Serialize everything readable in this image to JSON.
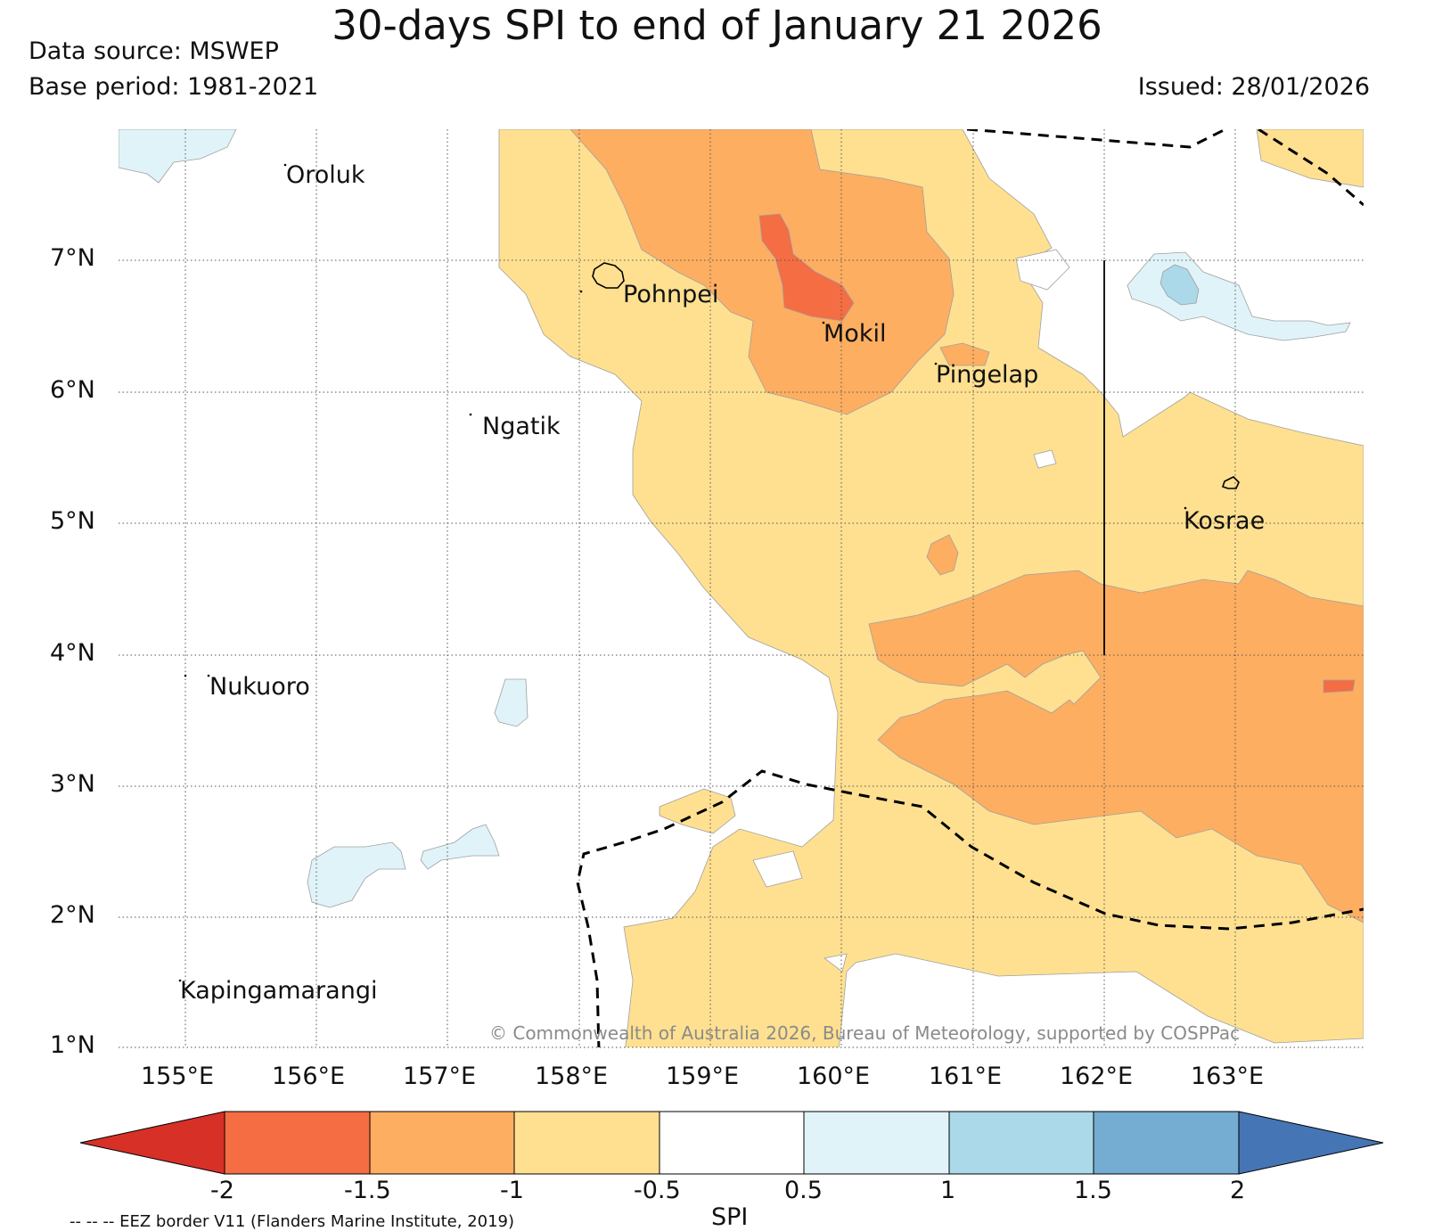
{
  "title": "30-days SPI to end of January 21 2026",
  "data_source": "Data source: MSWEP",
  "base_period": "Base period: 1981-2021",
  "issued": "Issued: 28/01/2026",
  "copyright": "© Commonwealth of Australia 2026, Bureau of Meteorology, supported by COSPPac",
  "eez_note": "-- -- -- EEZ border V11 (Flanders Marine Institute, 2019)",
  "colorbar": {
    "label": "SPI",
    "ticks": [
      "-2",
      "-1.5",
      "-1",
      "-0.5",
      "0.5",
      "1",
      "1.5",
      "2"
    ],
    "colors": {
      "lt_m2": "#d73027",
      "m2_m15": "#f46d43",
      "m15_m1": "#fdae61",
      "m1_m05": "#fee090",
      "neutral": "#ffffff",
      "p05_p1": "#e0f3f8",
      "p1_p15": "#abd9e9",
      "p15_p2": "#74add1",
      "gt_p2": "#4575b4"
    }
  },
  "axes": {
    "lat_labels": [
      "7°N",
      "6°N",
      "5°N",
      "4°N",
      "3°N",
      "2°N",
      "1°N"
    ],
    "lon_labels": [
      "155°E",
      "156°E",
      "157°E",
      "158°E",
      "159°E",
      "160°E",
      "161°E",
      "162°E",
      "163°E"
    ]
  },
  "places": {
    "oroluk": "Oroluk",
    "pohnpei": "Pohnpei",
    "mokil": "Mokil",
    "pingelap": "Pingelap",
    "ngatik": "Ngatik",
    "kosrae": "Kosrae",
    "nukuoro": "Nukuoro",
    "kapingamarangi": "Kapingamarangi"
  }
}
